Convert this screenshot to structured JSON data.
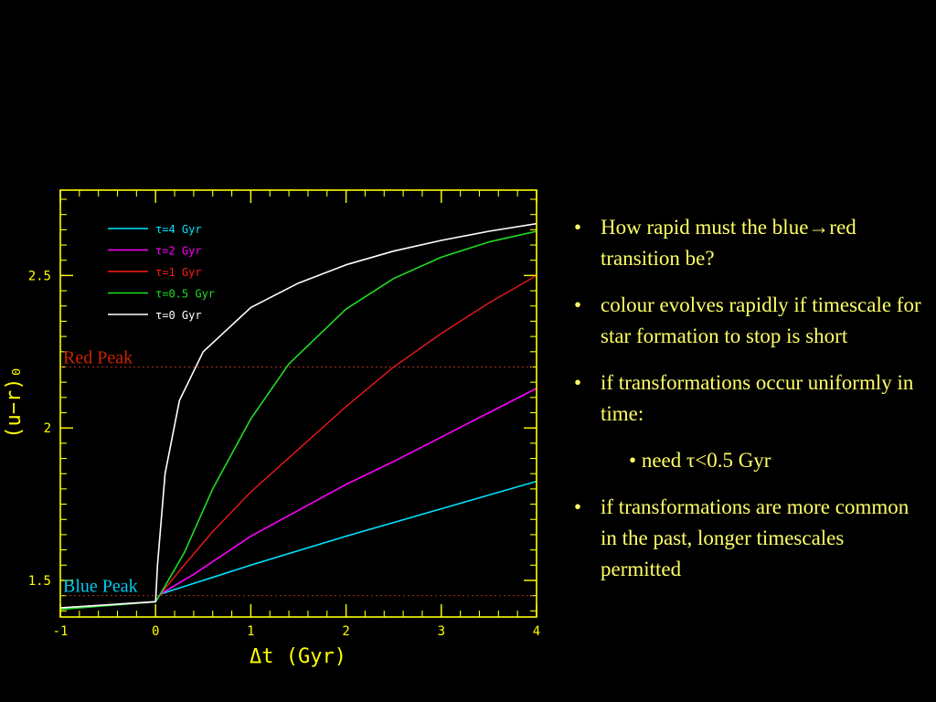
{
  "chart_data": {
    "type": "line",
    "xlabel": "Δt (Gyr)",
    "ylabel": "(u−r)₀",
    "xlim": [
      -1,
      4
    ],
    "ylim": [
      1.38,
      2.78
    ],
    "xticks": [
      -1,
      0,
      1,
      2,
      3,
      4
    ],
    "xtick_labels": [
      "-1",
      "0",
      "1",
      "2",
      "3",
      "4"
    ],
    "yticks": [
      1.5,
      2,
      2.5
    ],
    "ytick_labels": [
      "1.5",
      "2",
      "2.5"
    ],
    "legend_position": "top-left",
    "axis_color": "#ffff00",
    "reference_lines": [
      {
        "label": "Red Peak",
        "y": 2.2,
        "color": "#cc2200"
      },
      {
        "label": "Blue Peak",
        "y": 1.45,
        "color": "#00ccee"
      }
    ],
    "series": [
      {
        "name": "τ=4 Gyr",
        "color": "#00e5ff",
        "x": [
          -1,
          0,
          0.05,
          0.4,
          1,
          2,
          3,
          4
        ],
        "y": [
          1.41,
          1.43,
          1.455,
          1.49,
          1.55,
          1.645,
          1.735,
          1.825
        ]
      },
      {
        "name": "τ=2 Gyr",
        "color": "#ff00ff",
        "x": [
          -1,
          0,
          0.05,
          0.4,
          1,
          1.5,
          2,
          2.5,
          3,
          3.5,
          4
        ],
        "y": [
          1.41,
          1.43,
          1.455,
          1.52,
          1.645,
          1.73,
          1.815,
          1.89,
          1.97,
          2.05,
          2.13
        ]
      },
      {
        "name": "τ=1 Gyr",
        "color": "#ff1a1a",
        "x": [
          -1,
          0,
          0.05,
          0.3,
          0.6,
          1,
          1.5,
          2,
          2.5,
          3,
          3.5,
          4
        ],
        "y": [
          1.41,
          1.43,
          1.455,
          1.55,
          1.66,
          1.79,
          1.93,
          2.07,
          2.2,
          2.31,
          2.41,
          2.5
        ],
        "sparse": true
      },
      {
        "name": "τ=0.5 Gyr",
        "color": "#22dd22",
        "x": [
          -1,
          0,
          0.05,
          0.3,
          0.6,
          1,
          1.4,
          2,
          2.5,
          3,
          3.5,
          4
        ],
        "y": [
          1.405,
          1.43,
          1.455,
          1.59,
          1.8,
          2.03,
          2.21,
          2.39,
          2.49,
          2.56,
          2.61,
          2.645
        ]
      },
      {
        "name": "τ=0 Gyr",
        "color": "#ffffff",
        "x": [
          -1,
          0,
          0.02,
          0.1,
          0.25,
          0.5,
          1,
          1.5,
          2,
          2.5,
          3,
          3.5,
          4
        ],
        "y": [
          1.41,
          1.43,
          1.55,
          1.85,
          2.09,
          2.25,
          2.395,
          2.475,
          2.535,
          2.58,
          2.615,
          2.645,
          2.67
        ]
      }
    ]
  },
  "bullets": [
    {
      "text": "How rapid must the blue→red transition be?"
    },
    {
      "text": "colour evolves rapidly if timescale for star formation to stop is short"
    },
    {
      "text": "if transformations occur uniformly in time:"
    },
    {
      "text": "need τ<0.5 Gyr"
    },
    {
      "text": "if transformations are more common in the past, longer timescales permitted"
    }
  ]
}
